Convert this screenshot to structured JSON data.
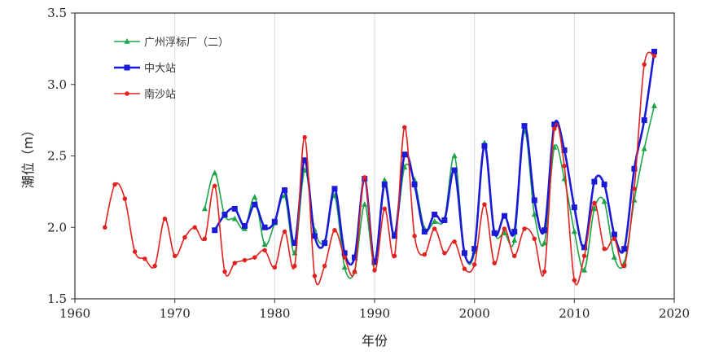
{
  "chart_data": {
    "type": "line",
    "xlabel": "年份",
    "ylabel": "潮位（m）",
    "xlim": [
      1960,
      2020
    ],
    "ylim": [
      1.5,
      3.5
    ],
    "xticks": [
      "1960",
      "1970",
      "1980",
      "1990",
      "2000",
      "2010",
      "2020"
    ],
    "yticks": [
      "1.5",
      "2.0",
      "2.5",
      "3.0",
      "3.5"
    ],
    "xtick_values": [
      1960,
      1970,
      1980,
      1990,
      2000,
      2010,
      2020
    ],
    "ytick_values": [
      1.5,
      2.0,
      2.5,
      3.0,
      3.5
    ],
    "grid": "vertical",
    "legend_position": "top-left",
    "series": [
      {
        "name": "广州浮标厂（二）",
        "color": "#1aa548",
        "marker": "triangle",
        "x": [
          1973,
          1974,
          1975,
          1976,
          1977,
          1978,
          1979,
          1980,
          1981,
          1982,
          1983,
          1984,
          1985,
          1986,
          1987,
          1988,
          1989,
          1990,
          1991,
          1992,
          1993,
          1994,
          1995,
          1996,
          1997,
          1998,
          1999,
          2000,
          2001,
          2002,
          2003,
          2004,
          2005,
          2006,
          2007,
          2008,
          2009,
          2010,
          2011,
          2012,
          2013,
          2014,
          2015,
          2016,
          2017,
          2018
        ],
        "y": [
          2.13,
          2.38,
          2.08,
          2.06,
          1.99,
          2.21,
          1.88,
          2.03,
          2.22,
          1.82,
          2.4,
          1.98,
          1.9,
          2.22,
          1.72,
          1.69,
          2.16,
          1.75,
          2.33,
          1.95,
          2.42,
          2.33,
          1.99,
          2.04,
          2.06,
          2.5,
          1.83,
          1.83,
          2.59,
          1.97,
          1.96,
          1.91,
          2.67,
          2.09,
          1.89,
          2.56,
          2.34,
          1.97,
          1.7,
          2.13,
          2.18,
          1.79,
          1.75,
          2.19,
          2.55,
          2.85
        ]
      },
      {
        "name": "中大站",
        "color": "#1a1ad6",
        "marker": "square",
        "x": [
          1974,
          1975,
          1976,
          1977,
          1978,
          1979,
          1980,
          1981,
          1982,
          1983,
          1984,
          1985,
          1986,
          1987,
          1988,
          1989,
          1990,
          1991,
          1992,
          1993,
          1994,
          1995,
          1996,
          1997,
          1998,
          1999,
          2000,
          2001,
          2002,
          2003,
          2004,
          2005,
          2006,
          2007,
          2008,
          2009,
          2010,
          2011,
          2012,
          2013,
          2014,
          2015,
          2016,
          2017,
          2018
        ],
        "y": [
          1.98,
          2.09,
          2.13,
          2.01,
          2.16,
          2.0,
          2.04,
          2.26,
          1.89,
          2.47,
          1.94,
          1.89,
          2.27,
          1.82,
          1.79,
          2.34,
          1.76,
          2.3,
          1.94,
          2.51,
          2.3,
          1.97,
          2.09,
          2.05,
          2.4,
          1.82,
          1.85,
          2.57,
          1.96,
          2.08,
          1.97,
          2.71,
          2.19,
          1.98,
          2.72,
          2.54,
          2.14,
          1.86,
          2.32,
          2.3,
          1.95,
          1.85,
          2.41,
          2.75,
          3.23
        ]
      },
      {
        "name": "南沙站",
        "color": "#e0211e",
        "marker": "circle",
        "x": [
          1963,
          1964,
          1965,
          1966,
          1967,
          1968,
          1969,
          1970,
          1971,
          1972,
          1973,
          1974,
          1975,
          1976,
          1977,
          1978,
          1979,
          1980,
          1981,
          1982,
          1983,
          1984,
          1985,
          1986,
          1987,
          1988,
          1989,
          1990,
          1991,
          1992,
          1993,
          1994,
          1995,
          1996,
          1997,
          1998,
          1999,
          2000,
          2001,
          2002,
          2003,
          2004,
          2005,
          2006,
          2007,
          2008,
          2009,
          2010,
          2011,
          2012,
          2013,
          2014,
          2015,
          2016,
          2017,
          2018
        ],
        "y": [
          2.0,
          2.3,
          2.2,
          1.83,
          1.78,
          1.73,
          2.06,
          1.8,
          1.93,
          2.0,
          1.92,
          2.29,
          1.69,
          1.75,
          1.77,
          1.79,
          1.84,
          1.72,
          1.97,
          1.73,
          2.63,
          1.66,
          1.73,
          1.98,
          1.79,
          1.69,
          2.35,
          1.7,
          2.13,
          1.8,
          2.7,
          1.94,
          1.81,
          1.99,
          1.82,
          1.9,
          1.71,
          1.74,
          2.16,
          1.75,
          1.99,
          1.8,
          1.99,
          1.92,
          1.69,
          2.69,
          2.43,
          1.63,
          1.8,
          2.17,
          1.85,
          1.92,
          1.73,
          2.27,
          3.14,
          3.2
        ]
      }
    ]
  }
}
